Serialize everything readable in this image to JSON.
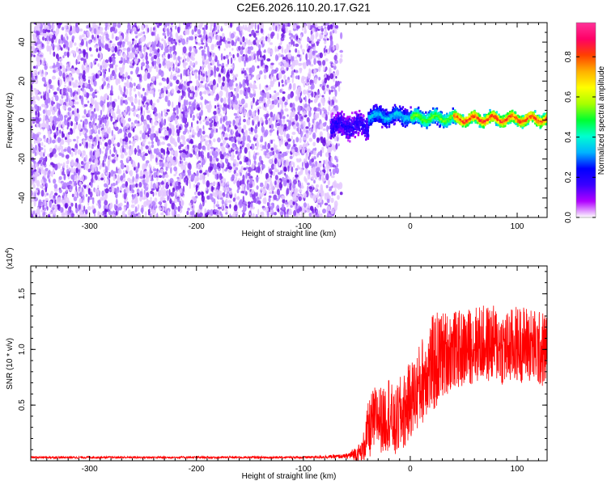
{
  "title": "C2E6.2026.110.20.17.G21",
  "chart_data": [
    {
      "type": "heatmap",
      "title": "C2E6.2026.110.20.17.G21",
      "xlabel": "Height of straight line (km)",
      "ylabel": "Frequency (Hz)",
      "xlim": [
        -355,
        128
      ],
      "ylim": [
        -50,
        50
      ],
      "x_ticks": [
        -300,
        -200,
        -100,
        0,
        100
      ],
      "y_ticks": [
        -40,
        -20,
        0,
        20,
        40
      ],
      "colorbar": {
        "label": "Normalized spectral amplitude",
        "range": [
          0,
          0.97
        ],
        "ticks": [
          "0.0",
          "0.2",
          "0.4",
          "0.6",
          "0.8"
        ],
        "ticks_values": [
          0,
          0.2,
          0.4,
          0.6,
          0.8
        ],
        "colors": [
          "#ffffff",
          "#b000ff",
          "#3a00ff",
          "#0000ff",
          "#00b4ff",
          "#00ffd0",
          "#00ff30",
          "#a8ff00",
          "#ffff00",
          "#ffb000",
          "#ff4000",
          "#ff0066",
          "#ff3399"
        ]
      },
      "regions": [
        {
          "x_range": [
            -355,
            -70
          ],
          "freq_range": [
            -50,
            50
          ],
          "description": "broadband noise",
          "amplitude": 0.05
        },
        {
          "x_range": [
            -75,
            -40
          ],
          "center_freq": -3,
          "spread_hz": 8,
          "amplitude": 0.2
        },
        {
          "x_range": [
            -40,
            0
          ],
          "center_freq": 2,
          "spread_hz": 6,
          "amplitude": 0.35
        },
        {
          "x_range": [
            0,
            40
          ],
          "center_freq": 1,
          "spread_hz": 5,
          "amplitude": 0.55
        },
        {
          "x_range": [
            40,
            128
          ],
          "center_freq": 0.5,
          "spread_hz": 4,
          "amplitude": 0.85
        }
      ]
    },
    {
      "type": "line",
      "xlabel": "Height of straight line (km)",
      "ylabel": "SNR (10 * v/v)",
      "y_multiplier": "(x10",
      "y_multiplier_exp": "4",
      "y_multiplier_close": ")",
      "xlim": [
        -355,
        128
      ],
      "ylim": [
        0,
        1.75
      ],
      "x_ticks": [
        -300,
        -200,
        -100,
        0,
        100
      ],
      "y_ticks": [
        "0.5",
        "1.0",
        "1.5"
      ],
      "y_tick_values": [
        0.5,
        1.0,
        1.5
      ],
      "series": [
        {
          "color": "#ff0000",
          "x": [
            -355,
            -300,
            -250,
            -200,
            -150,
            -100,
            -60,
            -45,
            -40,
            -35,
            -30,
            -25,
            -20,
            -15,
            -10,
            -5,
            0,
            5,
            10,
            15,
            20,
            25,
            30,
            40,
            50,
            60,
            70,
            80,
            90,
            100,
            110,
            120,
            128
          ],
          "values": [
            0.03,
            0.03,
            0.03,
            0.03,
            0.03,
            0.03,
            0.04,
            0.08,
            0.25,
            0.35,
            0.4,
            0.35,
            0.45,
            0.3,
            0.4,
            0.45,
            0.55,
            0.6,
            0.7,
            0.8,
            0.85,
            0.9,
            0.95,
            1.0,
            1.0,
            1.05,
            1.05,
            1.05,
            1.0,
            1.05,
            1.05,
            1.0,
            1.0
          ],
          "spread": [
            0.01,
            0.01,
            0.01,
            0.01,
            0.01,
            0.01,
            0.02,
            0.1,
            0.25,
            0.3,
            0.3,
            0.3,
            0.35,
            0.3,
            0.35,
            0.35,
            0.35,
            0.35,
            0.4,
            0.4,
            0.45,
            0.45,
            0.4,
            0.35,
            0.35,
            0.35,
            0.35,
            0.35,
            0.35,
            0.35,
            0.35,
            0.35,
            0.35
          ]
        }
      ]
    }
  ]
}
